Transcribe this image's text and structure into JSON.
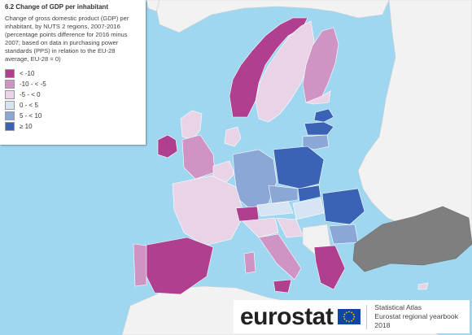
{
  "legend": {
    "title": "6.2 Change of GDP per inhabitant",
    "description": "Change of gross domestic product (GDP) per inhabitant, by NUTS 2 regions, 2007-2016 (percentage points difference for 2016 minus 2007; based on data in purchasing power standards (PPS) in relation to the EU-28 average, EU-28 = 0)",
    "classes": [
      {
        "label": "< -10",
        "color": "#b0408f"
      },
      {
        "label": "-10 - < -5",
        "color": "#cf94c4"
      },
      {
        "label": "-5 - < 0",
        "color": "#e8d4e6"
      },
      {
        "label": "0 - < 5",
        "color": "#d6e4f3"
      },
      {
        "label": "5 - < 10",
        "color": "#8aa7d6"
      },
      {
        "label": "≥ 10",
        "color": "#3a63b5"
      }
    ]
  },
  "map": {
    "sea_color": "#9ed7ef",
    "non_eu_color": "#f2f2f2",
    "no_data_color": "#7f7f7f"
  },
  "brand": {
    "wordmark": "eurostat",
    "line1": "Statistical Atlas",
    "line2": "Eurostat regional yearbook 2018"
  }
}
